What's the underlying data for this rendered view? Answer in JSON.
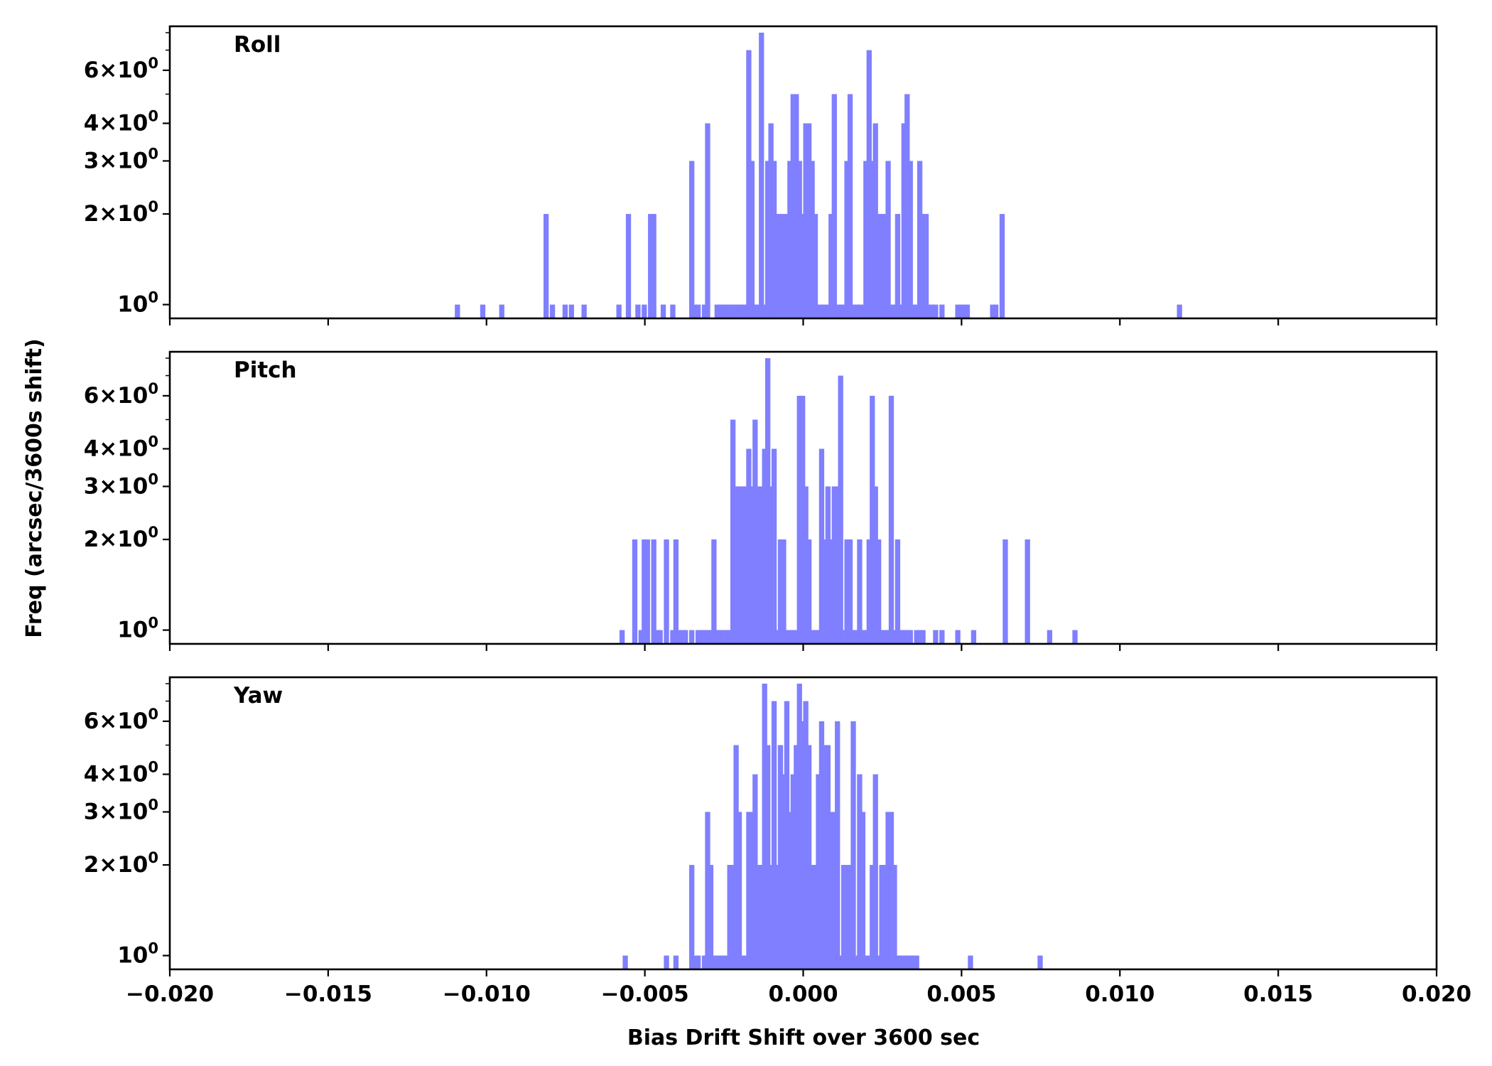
{
  "chart_data": {
    "type": "histogram",
    "xlabel": "Bias Drift Shift over 3600 sec",
    "ylabel": "Freq (arcsec/3600s shift)",
    "xlim": [
      -0.02,
      0.02
    ],
    "x_ticks": [
      "−0.020",
      "−0.015",
      "−0.010",
      "−0.005",
      "0.000",
      "0.005",
      "0.010",
      "0.015",
      "0.020"
    ],
    "yscale": "log",
    "ylim": [
      0.9,
      8.4
    ],
    "y_ticks": [
      {
        "value": 1,
        "base": "10",
        "exp": "0",
        "coef": ""
      },
      {
        "value": 2,
        "base": "10",
        "exp": "0",
        "coef": "2"
      },
      {
        "value": 3,
        "base": "10",
        "exp": "0",
        "coef": "3"
      },
      {
        "value": 4,
        "base": "10",
        "exp": "0",
        "coef": "4"
      },
      {
        "value": 6,
        "base": "10",
        "exp": "0",
        "coef": "6"
      }
    ],
    "bin_width": 0.0002,
    "bar_color": "#7f7fff",
    "grid": false,
    "panels": [
      {
        "label": "Roll",
        "bins": [
          [
            -0.0109,
            1
          ],
          [
            -0.0101,
            1
          ],
          [
            -0.0095,
            1
          ],
          [
            -0.0081,
            2
          ],
          [
            -0.0079,
            1
          ],
          [
            -0.0075,
            1
          ],
          [
            -0.0073,
            1
          ],
          [
            -0.0069,
            1
          ],
          [
            -0.0058,
            1
          ],
          [
            -0.0055,
            2
          ],
          [
            -0.0052,
            1
          ],
          [
            -0.005,
            1
          ],
          [
            -0.0048,
            2
          ],
          [
            -0.0047,
            2
          ],
          [
            -0.0044,
            1
          ],
          [
            -0.0041,
            1
          ],
          [
            -0.0035,
            3
          ],
          [
            -0.0034,
            1
          ],
          [
            -0.0033,
            1
          ],
          [
            -0.0031,
            1
          ],
          [
            -0.003,
            4
          ],
          [
            -0.0027,
            1
          ],
          [
            -0.0026,
            1
          ],
          [
            -0.0025,
            1
          ],
          [
            -0.0024,
            1
          ],
          [
            -0.0023,
            1
          ],
          [
            -0.0022,
            1
          ],
          [
            -0.0021,
            1
          ],
          [
            -0.002,
            1
          ],
          [
            -0.0019,
            1
          ],
          [
            -0.0018,
            1
          ],
          [
            -0.0017,
            7
          ],
          [
            -0.0016,
            3
          ],
          [
            -0.0015,
            1
          ],
          [
            -0.0014,
            1
          ],
          [
            -0.0013,
            8
          ],
          [
            -0.0012,
            1
          ],
          [
            -0.0011,
            3
          ],
          [
            -0.001,
            4
          ],
          [
            -0.0009,
            3
          ],
          [
            -0.0008,
            2
          ],
          [
            -0.0007,
            2
          ],
          [
            -0.0006,
            2
          ],
          [
            -0.0005,
            2
          ],
          [
            -0.0004,
            3
          ],
          [
            -0.0003,
            5
          ],
          [
            -0.0002,
            5
          ],
          [
            -0.0001,
            3
          ],
          [
            0.0,
            2
          ],
          [
            0.0001,
            4
          ],
          [
            0.0002,
            4
          ],
          [
            0.0003,
            3
          ],
          [
            0.0004,
            2
          ],
          [
            0.0005,
            1
          ],
          [
            0.0006,
            1
          ],
          [
            0.0007,
            1
          ],
          [
            0.0008,
            1
          ],
          [
            0.0009,
            2
          ],
          [
            0.001,
            5
          ],
          [
            0.0011,
            1
          ],
          [
            0.0012,
            1
          ],
          [
            0.0013,
            1
          ],
          [
            0.0014,
            3
          ],
          [
            0.0015,
            5
          ],
          [
            0.0016,
            1
          ],
          [
            0.0017,
            1
          ],
          [
            0.0018,
            1
          ],
          [
            0.0019,
            1
          ],
          [
            0.002,
            3
          ],
          [
            0.0021,
            7
          ],
          [
            0.0022,
            3
          ],
          [
            0.0023,
            4
          ],
          [
            0.0024,
            2
          ],
          [
            0.0025,
            2
          ],
          [
            0.0026,
            2
          ],
          [
            0.0027,
            3
          ],
          [
            0.0028,
            1
          ],
          [
            0.0029,
            1
          ],
          [
            0.003,
            2
          ],
          [
            0.0031,
            1
          ],
          [
            0.0032,
            4
          ],
          [
            0.0033,
            5
          ],
          [
            0.0034,
            3
          ],
          [
            0.0035,
            1
          ],
          [
            0.0036,
            1
          ],
          [
            0.0037,
            3
          ],
          [
            0.0038,
            2
          ],
          [
            0.0039,
            2
          ],
          [
            0.004,
            1
          ],
          [
            0.0041,
            1
          ],
          [
            0.0042,
            1
          ],
          [
            0.0044,
            1
          ],
          [
            0.0049,
            1
          ],
          [
            0.005,
            1
          ],
          [
            0.0051,
            1
          ],
          [
            0.0052,
            1
          ],
          [
            0.006,
            1
          ],
          [
            0.0061,
            1
          ],
          [
            0.0063,
            2
          ],
          [
            0.0119,
            1
          ]
        ]
      },
      {
        "label": "Pitch",
        "bins": [
          [
            -0.0057,
            1
          ],
          [
            -0.0053,
            2
          ],
          [
            -0.0051,
            1
          ],
          [
            -0.005,
            2
          ],
          [
            -0.0049,
            2
          ],
          [
            -0.0047,
            2
          ],
          [
            -0.0046,
            1
          ],
          [
            -0.0045,
            1
          ],
          [
            -0.0043,
            2
          ],
          [
            -0.0041,
            1
          ],
          [
            -0.004,
            2
          ],
          [
            -0.0039,
            1
          ],
          [
            -0.0038,
            1
          ],
          [
            -0.0037,
            1
          ],
          [
            -0.0035,
            1
          ],
          [
            -0.0033,
            1
          ],
          [
            -0.0032,
            1
          ],
          [
            -0.0031,
            1
          ],
          [
            -0.003,
            1
          ],
          [
            -0.0029,
            1
          ],
          [
            -0.0028,
            2
          ],
          [
            -0.0027,
            1
          ],
          [
            -0.0026,
            1
          ],
          [
            -0.0025,
            1
          ],
          [
            -0.0024,
            1
          ],
          [
            -0.0023,
            1
          ],
          [
            -0.0022,
            5
          ],
          [
            -0.0021,
            3
          ],
          [
            -0.002,
            3
          ],
          [
            -0.0019,
            3
          ],
          [
            -0.0018,
            3
          ],
          [
            -0.0017,
            4
          ],
          [
            -0.0016,
            3
          ],
          [
            -0.0015,
            5
          ],
          [
            -0.0014,
            3
          ],
          [
            -0.0013,
            3
          ],
          [
            -0.0012,
            4
          ],
          [
            -0.0011,
            8
          ],
          [
            -0.001,
            3
          ],
          [
            -0.0009,
            4
          ],
          [
            -0.0008,
            1
          ],
          [
            -0.0007,
            2
          ],
          [
            -0.0006,
            2
          ],
          [
            -0.0005,
            1
          ],
          [
            -0.0004,
            1
          ],
          [
            -0.0003,
            1
          ],
          [
            -0.0002,
            1
          ],
          [
            -0.0001,
            6
          ],
          [
            0.0,
            6
          ],
          [
            0.0001,
            3
          ],
          [
            0.0002,
            2
          ],
          [
            0.0003,
            1
          ],
          [
            0.0004,
            1
          ],
          [
            0.0005,
            1
          ],
          [
            0.0006,
            4
          ],
          [
            0.0007,
            2
          ],
          [
            0.0008,
            3
          ],
          [
            0.0009,
            2
          ],
          [
            0.001,
            3
          ],
          [
            0.0011,
            3
          ],
          [
            0.0012,
            7
          ],
          [
            0.0013,
            1
          ],
          [
            0.0014,
            2
          ],
          [
            0.0015,
            2
          ],
          [
            0.0016,
            1
          ],
          [
            0.0017,
            1
          ],
          [
            0.0018,
            2
          ],
          [
            0.0019,
            1
          ],
          [
            0.002,
            1
          ],
          [
            0.0021,
            2
          ],
          [
            0.0022,
            6
          ],
          [
            0.0023,
            3
          ],
          [
            0.0024,
            2
          ],
          [
            0.0025,
            1
          ],
          [
            0.0026,
            1
          ],
          [
            0.0027,
            1
          ],
          [
            0.0028,
            6
          ],
          [
            0.0029,
            1
          ],
          [
            0.003,
            2
          ],
          [
            0.0031,
            1
          ],
          [
            0.0032,
            1
          ],
          [
            0.0033,
            1
          ],
          [
            0.0034,
            1
          ],
          [
            0.0036,
            1
          ],
          [
            0.0037,
            1
          ],
          [
            0.0038,
            1
          ],
          [
            0.0042,
            1
          ],
          [
            0.0044,
            1
          ],
          [
            0.0049,
            1
          ],
          [
            0.0054,
            1
          ],
          [
            0.0064,
            2
          ],
          [
            0.0071,
            2
          ],
          [
            0.0078,
            1
          ],
          [
            0.0086,
            1
          ]
        ]
      },
      {
        "label": "Yaw",
        "bins": [
          [
            -0.0056,
            1
          ],
          [
            -0.0043,
            1
          ],
          [
            -0.004,
            1
          ],
          [
            -0.0035,
            2
          ],
          [
            -0.0034,
            1
          ],
          [
            -0.0033,
            1
          ],
          [
            -0.0031,
            1
          ],
          [
            -0.003,
            3
          ],
          [
            -0.0029,
            2
          ],
          [
            -0.0028,
            1
          ],
          [
            -0.0027,
            1
          ],
          [
            -0.0026,
            1
          ],
          [
            -0.0025,
            1
          ],
          [
            -0.0024,
            1
          ],
          [
            -0.0023,
            2
          ],
          [
            -0.0022,
            2
          ],
          [
            -0.0021,
            5
          ],
          [
            -0.002,
            3
          ],
          [
            -0.0019,
            1
          ],
          [
            -0.0018,
            1
          ],
          [
            -0.0017,
            3
          ],
          [
            -0.0016,
            3
          ],
          [
            -0.0015,
            4
          ],
          [
            -0.0014,
            2
          ],
          [
            -0.0013,
            2
          ],
          [
            -0.0012,
            8
          ],
          [
            -0.0011,
            5
          ],
          [
            -0.001,
            2
          ],
          [
            -0.0009,
            7
          ],
          [
            -0.0008,
            2
          ],
          [
            -0.0007,
            5
          ],
          [
            -0.0006,
            4
          ],
          [
            -0.0005,
            7
          ],
          [
            -0.0004,
            3
          ],
          [
            -0.0003,
            4
          ],
          [
            -0.0002,
            5
          ],
          [
            -0.0001,
            8
          ],
          [
            0.0,
            6
          ],
          [
            0.0001,
            7
          ],
          [
            0.0002,
            5
          ],
          [
            0.0003,
            2
          ],
          [
            0.0004,
            2
          ],
          [
            0.0005,
            4
          ],
          [
            0.0006,
            6
          ],
          [
            0.0007,
            5
          ],
          [
            0.0008,
            5
          ],
          [
            0.0009,
            3
          ],
          [
            0.001,
            3
          ],
          [
            0.0011,
            6
          ],
          [
            0.0012,
            1
          ],
          [
            0.0013,
            2
          ],
          [
            0.0014,
            2
          ],
          [
            0.0015,
            2
          ],
          [
            0.0016,
            6
          ],
          [
            0.0017,
            1
          ],
          [
            0.0018,
            4
          ],
          [
            0.0019,
            3
          ],
          [
            0.002,
            1
          ],
          [
            0.0021,
            1
          ],
          [
            0.0022,
            2
          ],
          [
            0.0023,
            4
          ],
          [
            0.0024,
            1
          ],
          [
            0.0025,
            2
          ],
          [
            0.0026,
            2
          ],
          [
            0.0027,
            3
          ],
          [
            0.0028,
            3
          ],
          [
            0.0029,
            2
          ],
          [
            0.003,
            1
          ],
          [
            0.0031,
            1
          ],
          [
            0.0032,
            1
          ],
          [
            0.0033,
            1
          ],
          [
            0.0034,
            1
          ],
          [
            0.0035,
            1
          ],
          [
            0.0036,
            1
          ],
          [
            0.0053,
            1
          ],
          [
            0.0075,
            1
          ]
        ]
      }
    ]
  }
}
